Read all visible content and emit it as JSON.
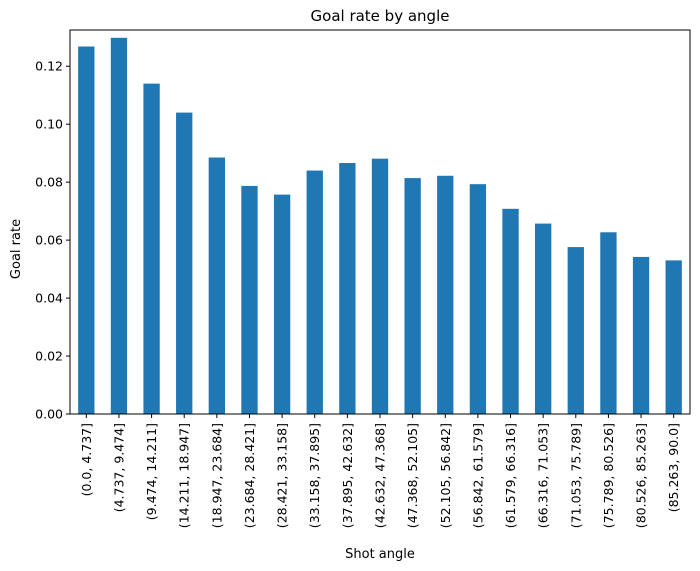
{
  "chart_data": {
    "type": "bar",
    "title": "Goal rate by angle",
    "xlabel": "Shot angle",
    "ylabel": "Goal rate",
    "categories": [
      "(0.0, 4.737]",
      "(4.737, 9.474]",
      "(9.474, 14.211]",
      "(14.211, 18.947]",
      "(18.947, 23.684]",
      "(23.684, 28.421]",
      "(28.421, 33.158]",
      "(33.158, 37.895]",
      "(37.895, 42.632]",
      "(42.632, 47.368]",
      "(47.368, 52.105]",
      "(52.105, 56.842]",
      "(56.842, 61.579]",
      "(61.579, 66.316]",
      "(66.316, 71.053]",
      "(71.053, 75.789]",
      "(75.789, 80.526]",
      "(80.526, 85.263]",
      "(85.263, 90.0]"
    ],
    "values": [
      0.1268,
      0.1298,
      0.114,
      0.104,
      0.0885,
      0.0787,
      0.0757,
      0.084,
      0.0866,
      0.0881,
      0.0814,
      0.0822,
      0.0793,
      0.0708,
      0.0657,
      0.0576,
      0.0627,
      0.0542,
      0.053
    ],
    "ylim": [
      0,
      0.1325
    ],
    "yticks": [
      "0.00",
      "0.02",
      "0.04",
      "0.06",
      "0.08",
      "0.10",
      "0.12"
    ],
    "bar_color": "#1f77b4",
    "grid": false,
    "legend": false
  }
}
